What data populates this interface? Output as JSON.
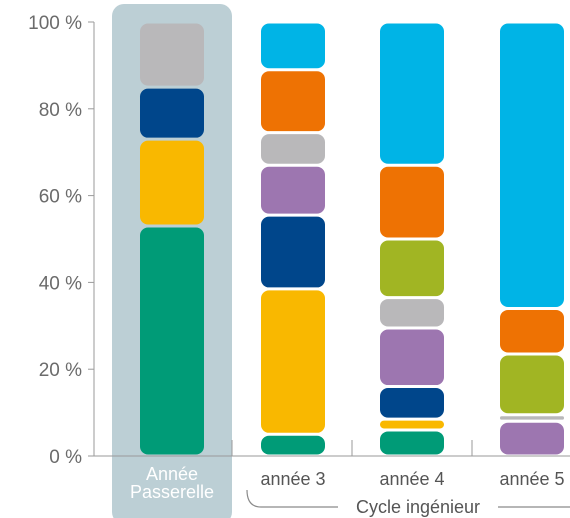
{
  "chart_data": {
    "type": "bar",
    "stacked": true,
    "normalized": true,
    "ylim": [
      0,
      100
    ],
    "y_ticks": [
      {
        "value": 0,
        "label": "0 %"
      },
      {
        "value": 20,
        "label": "20 %"
      },
      {
        "value": 40,
        "label": "40 %"
      },
      {
        "value": 60,
        "label": "60 %"
      },
      {
        "value": 80,
        "label": "80 %"
      },
      {
        "value": 100,
        "label": "100 %"
      }
    ],
    "categories": [
      {
        "label_lines": [
          "Année",
          "Passerelle"
        ],
        "highlighted": true
      },
      {
        "label_lines": [
          "année 3"
        ],
        "highlighted": false
      },
      {
        "label_lines": [
          "année 4"
        ],
        "highlighted": false
      },
      {
        "label_lines": [
          "année 5"
        ],
        "highlighted": false
      }
    ],
    "group_label": "Cycle ingénieur",
    "highlight_color": "#bccfd5",
    "bars": [
      [
        {
          "color": "#009b77",
          "start": 0,
          "end": 53
        },
        {
          "color": "#f9b800",
          "start": 53,
          "end": 73
        },
        {
          "color": "#00468b",
          "start": 73,
          "end": 85
        },
        {
          "color": "#b9b8ba",
          "start": 85,
          "end": 100
        }
      ],
      [
        {
          "color": "#009b77",
          "start": 0,
          "end": 5
        },
        {
          "color": "#f9b800",
          "start": 5,
          "end": 38.5
        },
        {
          "color": "#00468b",
          "start": 38.5,
          "end": 55.5
        },
        {
          "color": "#9d76b0",
          "start": 55.5,
          "end": 67
        },
        {
          "color": "#b9b8ba",
          "start": 67,
          "end": 74.5
        },
        {
          "color": "#ee7203",
          "start": 74.5,
          "end": 89
        },
        {
          "color": "#00b4e6",
          "start": 89,
          "end": 100
        }
      ],
      [
        {
          "color": "#009b77",
          "start": 0,
          "end": 6
        },
        {
          "color": "#f9b800",
          "start": 6,
          "end": 8.5
        },
        {
          "color": "#00468b",
          "start": 8.5,
          "end": 16
        },
        {
          "color": "#9d76b0",
          "start": 16,
          "end": 29.5
        },
        {
          "color": "#b9b8ba",
          "start": 29.5,
          "end": 36.5
        },
        {
          "color": "#a1b523",
          "start": 36.5,
          "end": 50
        },
        {
          "color": "#ee7203",
          "start": 50,
          "end": 67
        },
        {
          "color": "#00b4e6",
          "start": 67,
          "end": 100
        }
      ],
      [
        {
          "color": "#9d76b0",
          "start": 0,
          "end": 8
        },
        {
          "color": "#b9b8ba",
          "start": 8.5,
          "end": 9.5
        },
        {
          "color": "#a1b523",
          "start": 9.5,
          "end": 23.5
        },
        {
          "color": "#ee7203",
          "start": 23.5,
          "end": 34
        },
        {
          "color": "#00b4e6",
          "start": 34,
          "end": 100
        }
      ]
    ]
  }
}
